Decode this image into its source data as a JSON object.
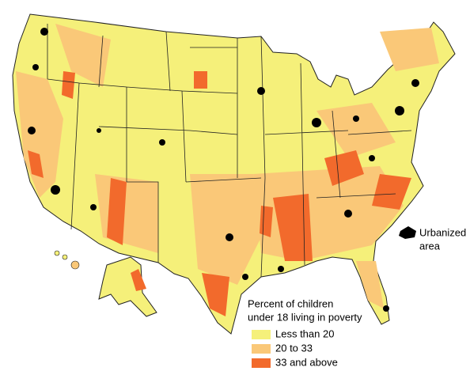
{
  "legend": {
    "title": [
      "Percent of children",
      "under 18 living in poverty"
    ],
    "items": [
      {
        "label": "Less than 20",
        "color": "#f5f07a"
      },
      {
        "label": "20 to 33",
        "color": "#fac878"
      },
      {
        "label": "33 and above",
        "color": "#f26a2c"
      }
    ]
  },
  "urbanized": {
    "label": [
      "Urbanized",
      "area"
    ]
  }
}
